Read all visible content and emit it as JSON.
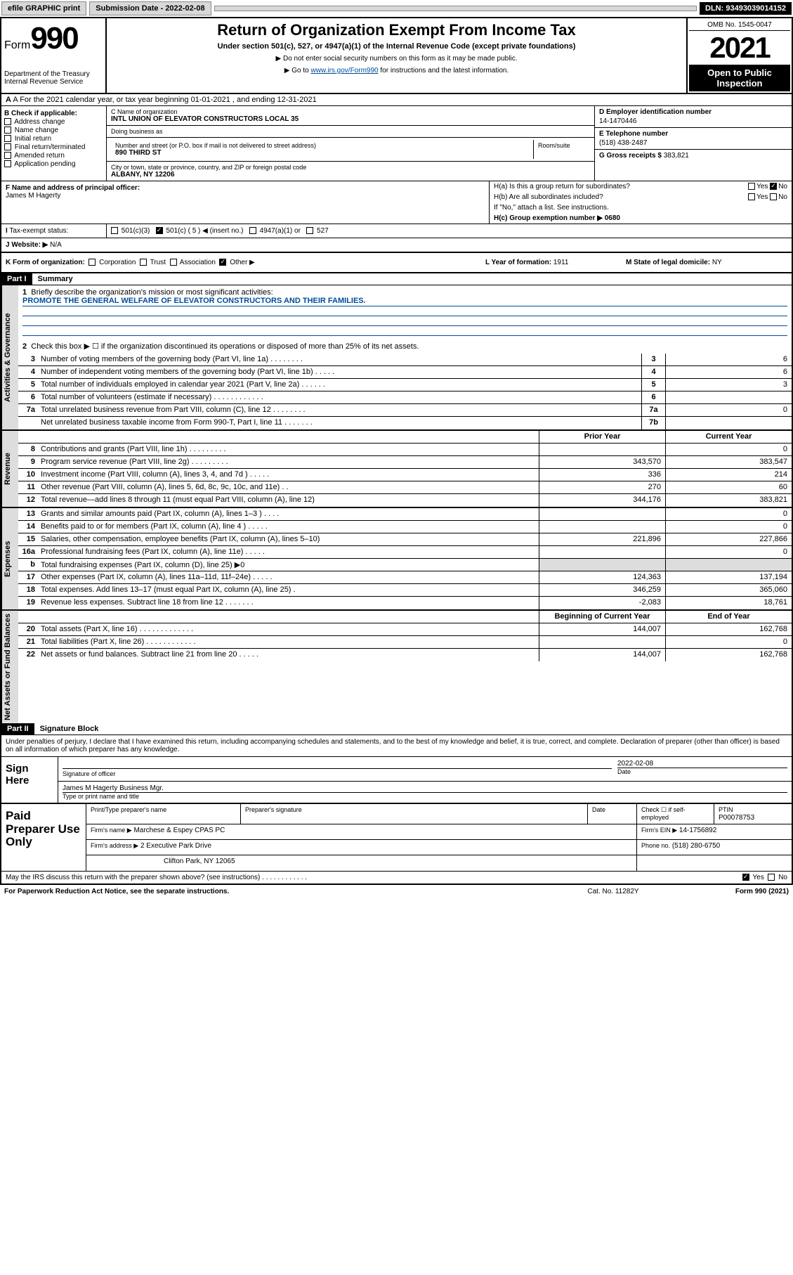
{
  "topbar": {
    "efile": "efile GRAPHIC print",
    "submission": "Submission Date - 2022-02-08",
    "dln": "DLN: 93493039014152"
  },
  "header": {
    "form_label": "Form",
    "form_number": "990",
    "dept": "Department of the Treasury\nInternal Revenue Service",
    "title": "Return of Organization Exempt From Income Tax",
    "subtitle": "Under section 501(c), 527, or 4947(a)(1) of the Internal Revenue Code (except private foundations)",
    "note1": "▶ Do not enter social security numbers on this form as it may be made public.",
    "note2_pre": "▶ Go to ",
    "note2_link": "www.irs.gov/Form990",
    "note2_post": " for instructions and the latest information.",
    "omb": "OMB No. 1545-0047",
    "year": "2021",
    "open": "Open to Public Inspection"
  },
  "row_a": {
    "text": "A For the 2021 calendar year, or tax year beginning 01-01-2021   , and ending 12-31-2021"
  },
  "col_b": {
    "title": "B Check if applicable:",
    "items": [
      "Address change",
      "Name change",
      "Initial return",
      "Final return/terminated",
      "Amended return",
      "Application pending"
    ]
  },
  "col_c": {
    "name_lbl": "C Name of organization",
    "name_val": "INTL UNION OF ELEVATOR CONSTRUCTORS LOCAL 35",
    "dba_lbl": "Doing business as",
    "dba_val": "",
    "street_lbl": "Number and street (or P.O. box if mail is not delivered to street address)",
    "street_val": "890 THIRD ST",
    "room_lbl": "Room/suite",
    "city_lbl": "City or town, state or province, country, and ZIP or foreign postal code",
    "city_val": "ALBANY, NY  12206"
  },
  "col_de": {
    "d_lbl": "D Employer identification number",
    "d_val": "14-1470446",
    "e_lbl": "E Telephone number",
    "e_val": "(518) 438-2487",
    "g_lbl": "G Gross receipts $",
    "g_val": "383,821"
  },
  "col_f": {
    "lbl": "F Name and address of principal officer:",
    "val": "James M Hagerty"
  },
  "col_h": {
    "ha": "H(a)  Is this a group return for subordinates?",
    "hb": "H(b)  Are all subordinates included?",
    "hb_note": "If \"No,\" attach a list. See instructions.",
    "hc": "H(c)  Group exemption number ▶   0680",
    "yes": "Yes",
    "no": "No"
  },
  "tax": {
    "lbl": "Tax-exempt status:",
    "opts": [
      "501(c)(3)",
      "501(c) ( 5 ) ◀ (insert no.)",
      "4947(a)(1) or",
      "527"
    ]
  },
  "row_j": {
    "lbl": "J  Website: ▶",
    "val": "N/A"
  },
  "row_k": {
    "lbl": "K Form of organization:",
    "opts": [
      "Corporation",
      "Trust",
      "Association",
      "Other ▶"
    ],
    "l_lbl": "L Year of formation:",
    "l_val": "1911",
    "m_lbl": "M State of legal domicile:",
    "m_val": "NY"
  },
  "part1": {
    "hdr": "Part I",
    "title": "Summary",
    "l1": "Briefly describe the organization's mission or most significant activities:",
    "mission": "PROMOTE THE GENERAL WELFARE OF ELEVATOR CONSTRUCTORS AND THEIR FAMILIES.",
    "l2": "Check this box ▶ ☐  if the organization discontinued its operations or disposed of more than 25% of its net assets.",
    "lines_gov": [
      {
        "n": "3",
        "d": "Number of voting members of the governing body (Part VI, line 1a)  .  .  .  .  .  .  .  .",
        "box": "3",
        "v": "6"
      },
      {
        "n": "4",
        "d": "Number of independent voting members of the governing body (Part VI, line 1b)  .  .  .  .  .",
        "box": "4",
        "v": "6"
      },
      {
        "n": "5",
        "d": "Total number of individuals employed in calendar year 2021 (Part V, line 2a)  .  .  .  .  .  .",
        "box": "5",
        "v": "3"
      },
      {
        "n": "6",
        "d": "Total number of volunteers (estimate if necessary)  .  .  .  .  .  .  .  .  .  .  .  .",
        "box": "6",
        "v": ""
      },
      {
        "n": "7a",
        "d": "Total unrelated business revenue from Part VIII, column (C), line 12  .  .  .  .  .  .  .  .",
        "box": "7a",
        "v": "0"
      },
      {
        "n": "",
        "d": "Net unrelated business taxable income from Form 990-T, Part I, line 11  .  .  .  .  .  .  .",
        "box": "7b",
        "v": ""
      }
    ],
    "col_prior": "Prior Year",
    "col_current": "Current Year",
    "lines_rev": [
      {
        "n": "8",
        "d": "Contributions and grants (Part VIII, line 1h)  .  .  .  .  .  .  .  .  .",
        "p": "",
        "c": "0"
      },
      {
        "n": "9",
        "d": "Program service revenue (Part VIII, line 2g)  .  .  .  .  .  .  .  .  .",
        "p": "343,570",
        "c": "383,547"
      },
      {
        "n": "10",
        "d": "Investment income (Part VIII, column (A), lines 3, 4, and 7d )  .  .  .  .  .",
        "p": "336",
        "c": "214"
      },
      {
        "n": "11",
        "d": "Other revenue (Part VIII, column (A), lines 5, 6d, 8c, 9c, 10c, and 11e)  .  .",
        "p": "270",
        "c": "60"
      },
      {
        "n": "12",
        "d": "Total revenue—add lines 8 through 11 (must equal Part VIII, column (A), line 12)",
        "p": "344,176",
        "c": "383,821"
      }
    ],
    "lines_exp": [
      {
        "n": "13",
        "d": "Grants and similar amounts paid (Part IX, column (A), lines 1–3 )  .  .  .  .",
        "p": "",
        "c": "0"
      },
      {
        "n": "14",
        "d": "Benefits paid to or for members (Part IX, column (A), line 4 )  .  .  .  .  .",
        "p": "",
        "c": "0"
      },
      {
        "n": "15",
        "d": "Salaries, other compensation, employee benefits (Part IX, column (A), lines 5–10)",
        "p": "221,896",
        "c": "227,866"
      },
      {
        "n": "16a",
        "d": "Professional fundraising fees (Part IX, column (A), line 11e)  .  .  .  .  .",
        "p": "",
        "c": "0"
      },
      {
        "n": "b",
        "d": "Total fundraising expenses (Part IX, column (D), line 25) ▶0",
        "p": "",
        "c": "",
        "shaded": true
      },
      {
        "n": "17",
        "d": "Other expenses (Part IX, column (A), lines 11a–11d, 11f–24e)  .  .  .  .  .",
        "p": "124,363",
        "c": "137,194"
      },
      {
        "n": "18",
        "d": "Total expenses. Add lines 13–17 (must equal Part IX, column (A), line 25)  .",
        "p": "346,259",
        "c": "365,060"
      },
      {
        "n": "19",
        "d": "Revenue less expenses. Subtract line 18 from line 12  .  .  .  .  .  .  .",
        "p": "-2,083",
        "c": "18,761"
      }
    ],
    "col_begin": "Beginning of Current Year",
    "col_end": "End of Year",
    "lines_net": [
      {
        "n": "20",
        "d": "Total assets (Part X, line 16)  .  .  .  .  .  .  .  .  .  .  .  .  .",
        "p": "144,007",
        "c": "162,768"
      },
      {
        "n": "21",
        "d": "Total liabilities (Part X, line 26)  .  .  .  .  .  .  .  .  .  .  .  .",
        "p": "",
        "c": "0"
      },
      {
        "n": "22",
        "d": "Net assets or fund balances. Subtract line 21 from line 20  .  .  .  .  .",
        "p": "144,007",
        "c": "162,768"
      }
    ],
    "tabs": [
      "Activities & Governance",
      "Revenue",
      "Expenses",
      "Net Assets or Fund Balances"
    ]
  },
  "part2": {
    "hdr": "Part II",
    "title": "Signature Block",
    "note": "Under penalties of perjury, I declare that I have examined this return, including accompanying schedules and statements, and to the best of my knowledge and belief, it is true, correct, and complete. Declaration of preparer (other than officer) is based on all information of which preparer has any knowledge.",
    "sign_here": "Sign Here",
    "sig_officer": "Signature of officer",
    "date": "Date",
    "date_val": "2022-02-08",
    "name_title": "James M Hagerty  Business Mgr.",
    "name_title_lbl": "Type or print name and title",
    "paid": "Paid Preparer Use Only",
    "prep_name_lbl": "Print/Type preparer's name",
    "prep_sig_lbl": "Preparer's signature",
    "prep_date_lbl": "Date",
    "check_if": "Check ☐ if self-employed",
    "ptin_lbl": "PTIN",
    "ptin_val": "P00078753",
    "firm_name_lbl": "Firm's name    ▶",
    "firm_name_val": "Marchese & Espey CPAS PC",
    "firm_ein_lbl": "Firm's EIN ▶",
    "firm_ein_val": "14-1756892",
    "firm_addr_lbl": "Firm's address ▶",
    "firm_addr_val": "2 Executive Park Drive",
    "firm_addr2": "Clifton Park, NY  12065",
    "phone_lbl": "Phone no.",
    "phone_val": "(518) 280-6750",
    "may_irs": "May the IRS discuss this return with the preparer shown above? (see instructions)  .  .  .  .  .  .  .  .  .  .  .  .",
    "yes": "Yes",
    "no": "No"
  },
  "footer": {
    "paperwork": "For Paperwork Reduction Act Notice, see the separate instructions.",
    "cat": "Cat. No. 11282Y",
    "form": "Form 990 (2021)"
  }
}
